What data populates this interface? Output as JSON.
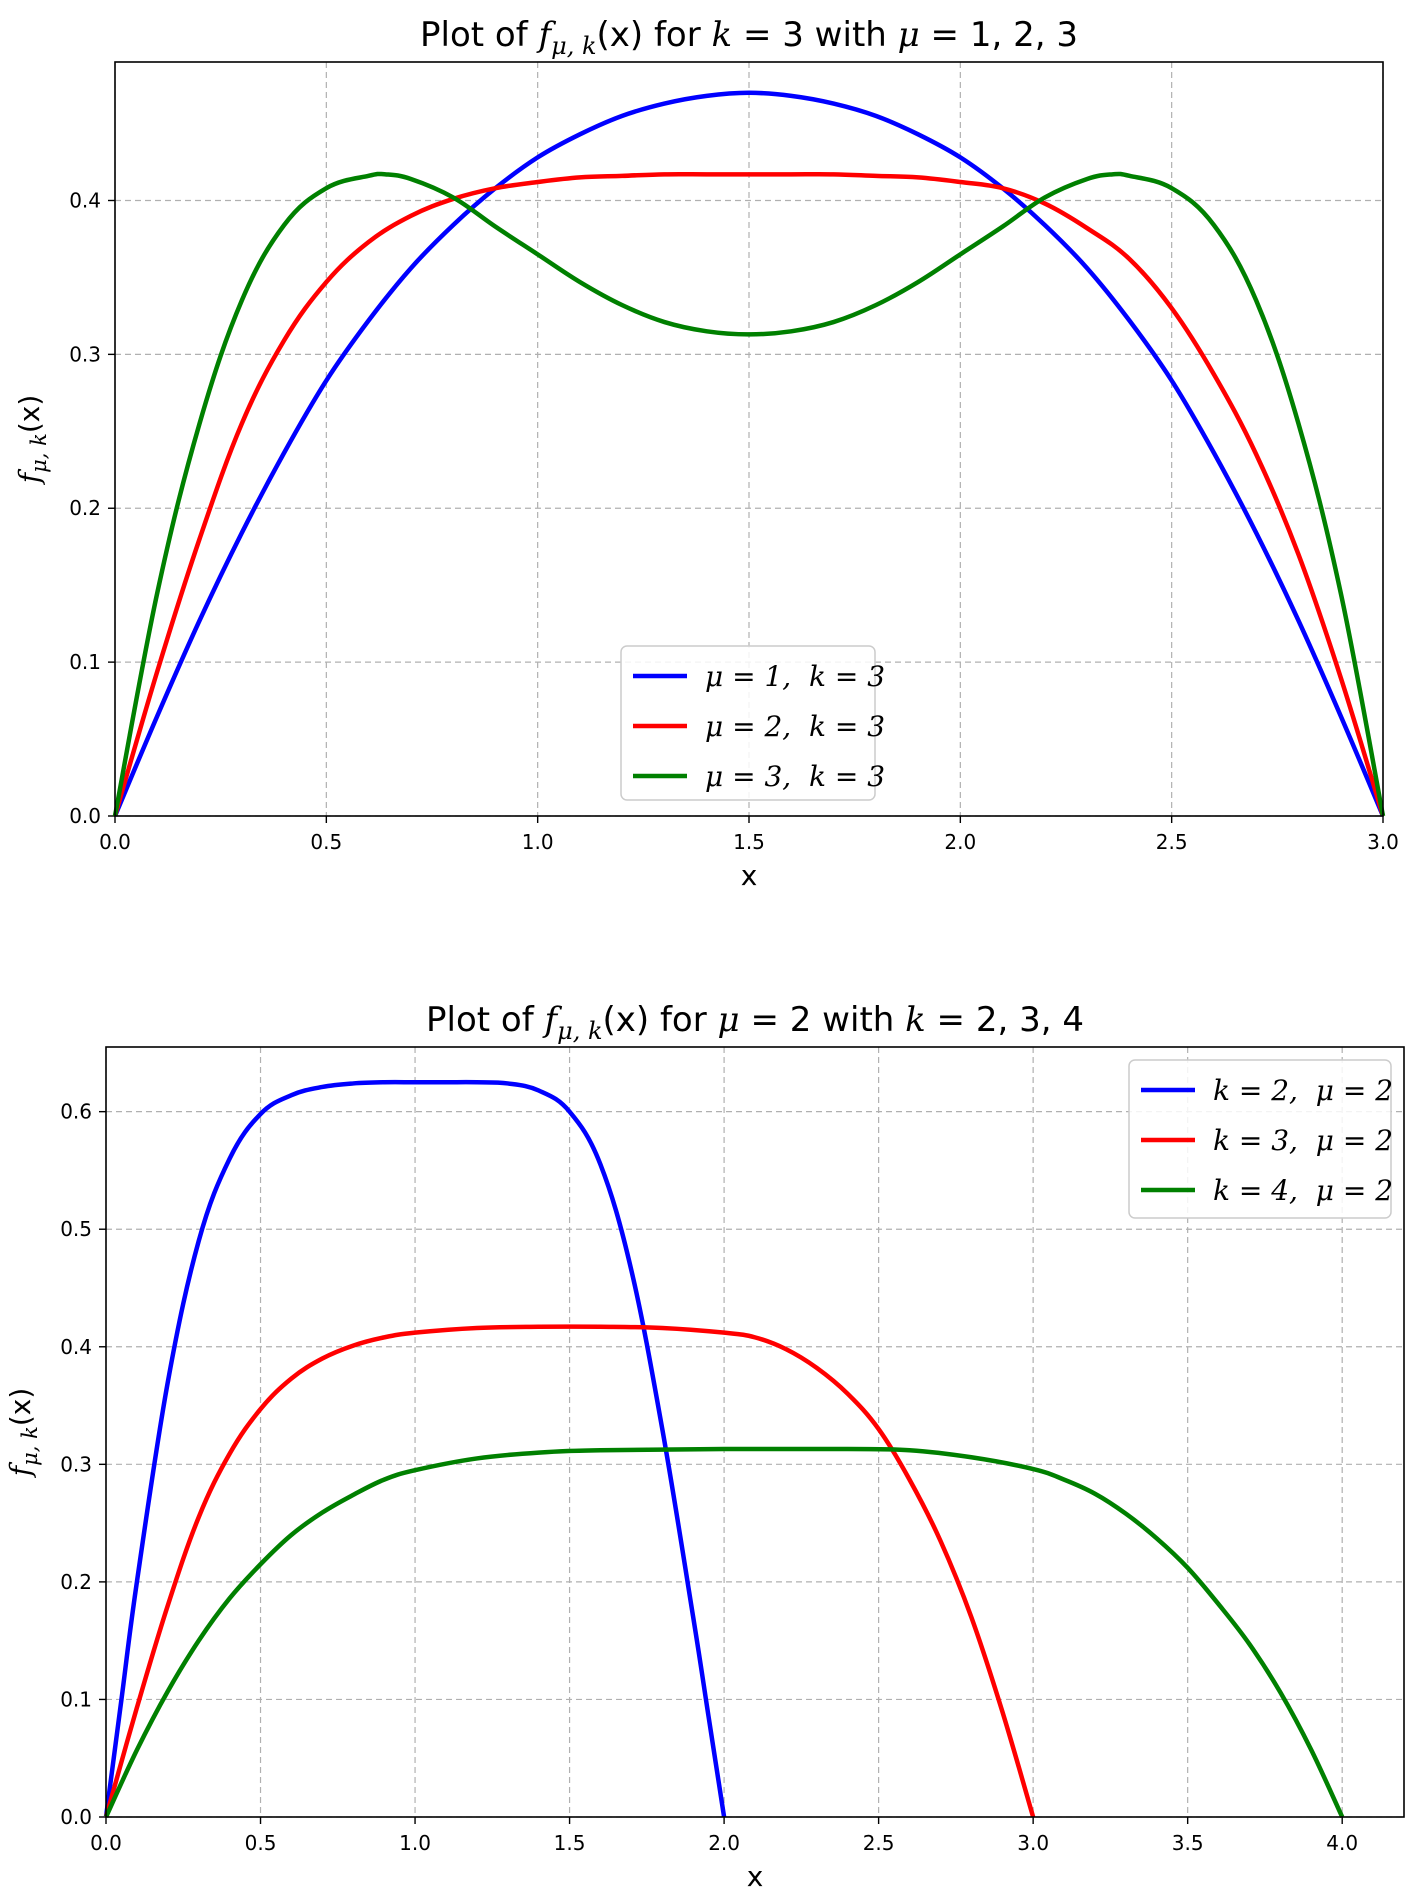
{
  "chart_data": [
    {
      "type": "line",
      "title": "Plot of f_{μ,k}(x) for k = 3 with μ = 1, 2, 3",
      "title_parts": {
        "pre": "Plot of ",
        "f": "f",
        "sub": "μ, k",
        "arg": "(x)",
        "mid1": " for ",
        "k": "k",
        "eq1": " = 3 with ",
        "mu": "μ",
        "eq2": " = 1, 2, 3"
      },
      "xlabel": "x",
      "ylabel": "f_{μ,k}(x)",
      "ylabel_parts": {
        "f": "f",
        "sub": "μ, k",
        "arg": "(x)"
      },
      "xlim": [
        0,
        3
      ],
      "ylim": [
        0,
        0.49
      ],
      "xticks": [
        "0.0",
        "0.5",
        "1.0",
        "1.5",
        "2.0",
        "2.5",
        "3.0"
      ],
      "yticks": [
        "0.0",
        "0.1",
        "0.2",
        "0.3",
        "0.4"
      ],
      "grid": true,
      "legend_position": "lower-center",
      "series": [
        {
          "name": "μ = 1,  k = 3",
          "color": "#0000ff",
          "x": [
            0,
            0.1,
            0.2,
            0.3,
            0.4,
            0.5,
            0.6,
            0.7,
            0.8,
            0.9,
            1.0,
            1.1,
            1.2,
            1.3,
            1.4,
            1.5,
            1.6,
            1.7,
            1.8,
            1.9,
            2.0,
            2.1,
            2.2,
            2.3,
            2.4,
            2.5,
            2.6,
            2.7,
            2.8,
            2.9,
            3.0
          ],
          "y": [
            0,
            0.065,
            0.127,
            0.184,
            0.236,
            0.283,
            0.322,
            0.356,
            0.384,
            0.408,
            0.428,
            0.443,
            0.455,
            0.463,
            0.468,
            0.47,
            0.468,
            0.463,
            0.455,
            0.443,
            0.428,
            0.408,
            0.384,
            0.356,
            0.322,
            0.283,
            0.236,
            0.184,
            0.127,
            0.065,
            0
          ]
        },
        {
          "name": "μ = 2,  k = 3",
          "color": "#ff0000",
          "x": [
            0,
            0.1,
            0.2,
            0.3,
            0.4,
            0.5,
            0.6,
            0.7,
            0.8,
            0.9,
            1.0,
            1.1,
            1.2,
            1.3,
            1.4,
            1.5,
            1.6,
            1.7,
            1.8,
            1.9,
            2.0,
            2.1,
            2.2,
            2.3,
            2.4,
            2.5,
            2.6,
            2.7,
            2.8,
            2.9,
            3.0
          ],
          "y": [
            0,
            0.094,
            0.18,
            0.255,
            0.309,
            0.347,
            0.373,
            0.39,
            0.401,
            0.408,
            0.412,
            0.415,
            0.416,
            0.417,
            0.417,
            0.417,
            0.417,
            0.417,
            0.416,
            0.415,
            0.412,
            0.408,
            0.398,
            0.382,
            0.362,
            0.33,
            0.287,
            0.235,
            0.17,
            0.09,
            0
          ]
        },
        {
          "name": "μ = 3,  k = 3",
          "color": "#008000",
          "x": [
            0,
            0.1,
            0.2,
            0.3,
            0.4,
            0.5,
            0.6,
            0.64,
            0.7,
            0.8,
            0.9,
            1.0,
            1.1,
            1.2,
            1.3,
            1.4,
            1.5,
            1.6,
            1.7,
            1.8,
            1.9,
            2.0,
            2.1,
            2.2,
            2.3,
            2.36,
            2.4,
            2.5,
            2.6,
            2.7,
            2.8,
            2.9,
            3.0
          ],
          "y": [
            0,
            0.145,
            0.255,
            0.335,
            0.384,
            0.408,
            0.416,
            0.417,
            0.414,
            0.402,
            0.383,
            0.365,
            0.347,
            0.332,
            0.321,
            0.315,
            0.313,
            0.315,
            0.321,
            0.332,
            0.347,
            0.365,
            0.383,
            0.402,
            0.414,
            0.417,
            0.416,
            0.408,
            0.384,
            0.335,
            0.255,
            0.145,
            0
          ]
        }
      ]
    },
    {
      "type": "line",
      "title": "Plot of f_{μ,k}(x) for μ = 2 with k = 2, 3, 4",
      "title_parts": {
        "pre": "Plot of ",
        "f": "f",
        "sub": "μ, k",
        "arg": "(x)",
        "mid1": " for ",
        "mu": "μ",
        "eq1": " = 2 with ",
        "k": "k",
        "eq2": " = 2, 3, 4"
      },
      "xlabel": "x",
      "ylabel": "f_{μ,k}(x)",
      "ylabel_parts": {
        "f": "f",
        "sub": "μ, k",
        "arg": "(x)"
      },
      "xlim": [
        0,
        4.2
      ],
      "ylim": [
        0,
        0.655
      ],
      "xticks": [
        "0.0",
        "0.5",
        "1.0",
        "1.5",
        "2.0",
        "2.5",
        "3.0",
        "3.5",
        "4.0"
      ],
      "yticks": [
        "0.0",
        "0.1",
        "0.2",
        "0.3",
        "0.4",
        "0.5",
        "0.6"
      ],
      "grid": true,
      "legend_position": "upper-right",
      "series": [
        {
          "name": "k = 2,  μ = 2",
          "color": "#0000ff",
          "x": [
            0,
            0.05,
            0.1,
            0.2,
            0.3,
            0.4,
            0.5,
            0.6,
            0.7,
            0.8,
            0.9,
            1.0,
            1.1,
            1.2,
            1.3,
            1.4,
            1.5,
            1.6,
            1.7,
            1.8,
            1.9,
            1.95,
            2.0
          ],
          "y": [
            0,
            0.1,
            0.2,
            0.37,
            0.49,
            0.56,
            0.598,
            0.614,
            0.621,
            0.624,
            0.625,
            0.625,
            0.625,
            0.625,
            0.624,
            0.618,
            0.6,
            0.555,
            0.465,
            0.33,
            0.17,
            0.085,
            0
          ]
        },
        {
          "name": "k = 3,  μ = 2",
          "color": "#ff0000",
          "x": [
            0,
            0.1,
            0.2,
            0.3,
            0.4,
            0.5,
            0.6,
            0.7,
            0.8,
            0.9,
            1.0,
            1.2,
            1.4,
            1.6,
            1.8,
            2.0,
            2.1,
            2.2,
            2.3,
            2.4,
            2.5,
            2.6,
            2.7,
            2.8,
            2.9,
            3.0
          ],
          "y": [
            0,
            0.093,
            0.18,
            0.255,
            0.309,
            0.347,
            0.373,
            0.39,
            0.401,
            0.408,
            0.412,
            0.416,
            0.417,
            0.417,
            0.416,
            0.412,
            0.408,
            0.398,
            0.382,
            0.36,
            0.33,
            0.287,
            0.235,
            0.17,
            0.09,
            0
          ]
        },
        {
          "name": "k = 4,  μ = 2",
          "color": "#008000",
          "x": [
            0,
            0.1,
            0.2,
            0.3,
            0.4,
            0.5,
            0.6,
            0.7,
            0.8,
            0.9,
            1.0,
            1.2,
            1.4,
            1.6,
            2.0,
            2.4,
            2.6,
            2.8,
            3.0,
            3.1,
            3.2,
            3.3,
            3.4,
            3.5,
            3.6,
            3.7,
            3.8,
            3.9,
            4.0
          ],
          "y": [
            0,
            0.057,
            0.107,
            0.15,
            0.186,
            0.215,
            0.24,
            0.259,
            0.274,
            0.287,
            0.295,
            0.305,
            0.31,
            0.312,
            0.313,
            0.313,
            0.312,
            0.306,
            0.296,
            0.287,
            0.275,
            0.258,
            0.237,
            0.212,
            0.181,
            0.147,
            0.106,
            0.057,
            0
          ]
        }
      ]
    }
  ]
}
